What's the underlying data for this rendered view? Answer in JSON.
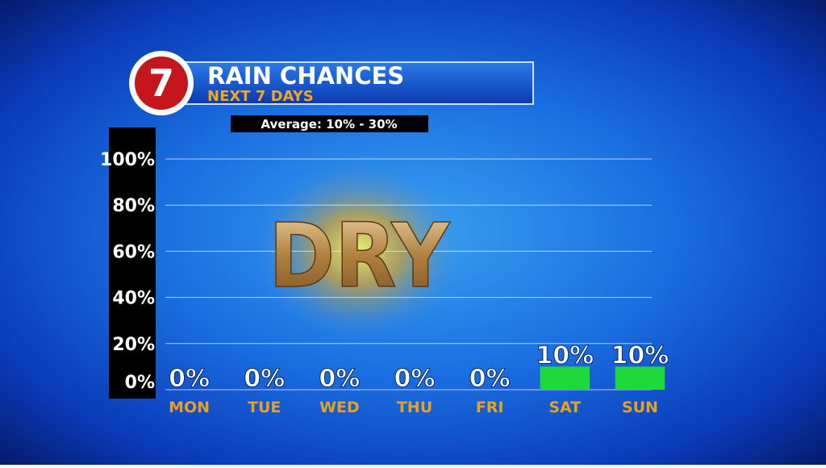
{
  "chart_data": {
    "type": "bar",
    "logo": "7",
    "title": "RAIN CHANCES",
    "subtitle": "NEXT 7 DAYS",
    "note": "Average: 10% - 30%",
    "annotation": "DRY",
    "categories": [
      "MON",
      "TUE",
      "WED",
      "THU",
      "FRI",
      "SAT",
      "SUN"
    ],
    "values": [
      0,
      0,
      0,
      0,
      0,
      10,
      10
    ],
    "value_labels": [
      "0%",
      "0%",
      "0%",
      "0%",
      "0%",
      "10%",
      "10%"
    ],
    "color": "#1fd83a",
    "ylim": [
      0,
      100
    ],
    "yticks": [
      {
        "value": 0,
        "label": "0%"
      },
      {
        "value": 20,
        "label": "20%"
      },
      {
        "value": 40,
        "label": "40%"
      },
      {
        "value": 60,
        "label": "60%"
      },
      {
        "value": 80,
        "label": "80%"
      },
      {
        "value": 100,
        "label": "100%"
      }
    ],
    "grid": true
  }
}
